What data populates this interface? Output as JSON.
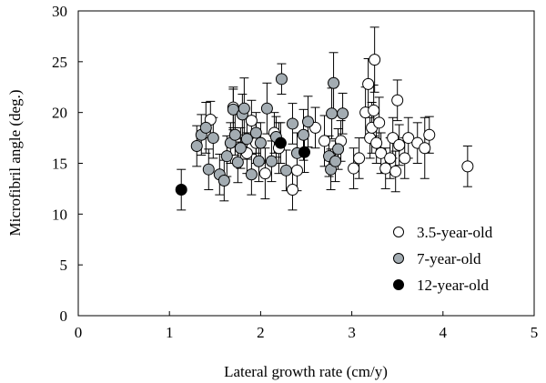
{
  "chart_data": {
    "type": "scatter",
    "title": "",
    "xlabel": "Lateral growth rate (cm/y)",
    "ylabel": "Microfibril angle (deg.)",
    "xlim": [
      0,
      5
    ],
    "ylim": [
      0,
      30
    ],
    "xticks": [
      "0",
      "1",
      "2",
      "3",
      "4",
      "5"
    ],
    "yticks": [
      "0",
      "5",
      "10",
      "15",
      "20",
      "25",
      "30"
    ],
    "grid": false,
    "error_bars": true,
    "legend_position": "bottom-right",
    "series": [
      {
        "name": "3.5-year-old",
        "marker_fill": "#ffffff",
        "points": [
          {
            "x": 1.45,
            "y": 19.3,
            "err": 1.8
          },
          {
            "x": 1.7,
            "y": 20.5,
            "err": 2.0
          },
          {
            "x": 1.85,
            "y": 16.0,
            "err": 2.0
          },
          {
            "x": 1.9,
            "y": 19.2,
            "err": 2.0
          },
          {
            "x": 1.95,
            "y": 17.0,
            "err": 2.0
          },
          {
            "x": 2.05,
            "y": 14.0,
            "err": 2.5
          },
          {
            "x": 2.15,
            "y": 18.0,
            "err": 2.0
          },
          {
            "x": 2.2,
            "y": 16.5,
            "err": 2.5
          },
          {
            "x": 2.35,
            "y": 12.4,
            "err": 2.0
          },
          {
            "x": 2.4,
            "y": 14.3,
            "err": 2.0
          },
          {
            "x": 2.6,
            "y": 18.5,
            "err": 2.0
          },
          {
            "x": 2.7,
            "y": 17.2,
            "err": 2.5
          },
          {
            "x": 2.88,
            "y": 17.2,
            "err": 2.0
          },
          {
            "x": 3.02,
            "y": 14.5,
            "err": 2.0
          },
          {
            "x": 3.08,
            "y": 15.5,
            "err": 2.0
          },
          {
            "x": 3.15,
            "y": 20.0,
            "err": 2.5
          },
          {
            "x": 3.18,
            "y": 22.8,
            "err": 2.5
          },
          {
            "x": 3.2,
            "y": 17.5,
            "err": 2.0
          },
          {
            "x": 3.22,
            "y": 18.5,
            "err": 2.5
          },
          {
            "x": 3.24,
            "y": 20.2,
            "err": 2.5
          },
          {
            "x": 3.25,
            "y": 25.2,
            "err": 3.2
          },
          {
            "x": 3.27,
            "y": 17.0,
            "err": 2.0
          },
          {
            "x": 3.3,
            "y": 19.0,
            "err": 2.5
          },
          {
            "x": 3.32,
            "y": 16.0,
            "err": 2.0
          },
          {
            "x": 3.37,
            "y": 14.5,
            "err": 2.0
          },
          {
            "x": 3.42,
            "y": 15.5,
            "err": 2.0
          },
          {
            "x": 3.45,
            "y": 17.5,
            "err": 2.0
          },
          {
            "x": 3.48,
            "y": 14.2,
            "err": 2.0
          },
          {
            "x": 3.5,
            "y": 21.2,
            "err": 2.0
          },
          {
            "x": 3.52,
            "y": 16.8,
            "err": 2.0
          },
          {
            "x": 3.58,
            "y": 15.5,
            "err": 2.0
          },
          {
            "x": 3.62,
            "y": 17.5,
            "err": 2.0
          },
          {
            "x": 3.72,
            "y": 17.0,
            "err": 2.0
          },
          {
            "x": 3.8,
            "y": 16.5,
            "err": 3.0
          },
          {
            "x": 3.85,
            "y": 17.8,
            "err": 1.8
          },
          {
            "x": 4.27,
            "y": 14.7,
            "err": 2.0
          }
        ]
      },
      {
        "name": "7-year-old",
        "marker_fill": "#a3acb2",
        "points": [
          {
            "x": 1.3,
            "y": 16.7,
            "err": 2.0
          },
          {
            "x": 1.35,
            "y": 17.8,
            "err": 2.0
          },
          {
            "x": 1.4,
            "y": 18.5,
            "err": 2.5
          },
          {
            "x": 1.43,
            "y": 14.4,
            "err": 2.0
          },
          {
            "x": 1.48,
            "y": 17.5,
            "err": 2.0
          },
          {
            "x": 1.55,
            "y": 13.9,
            "err": 2.0
          },
          {
            "x": 1.6,
            "y": 13.3,
            "err": 2.0
          },
          {
            "x": 1.63,
            "y": 15.7,
            "err": 2.0
          },
          {
            "x": 1.67,
            "y": 17.0,
            "err": 2.0
          },
          {
            "x": 1.7,
            "y": 20.3,
            "err": 2.0
          },
          {
            "x": 1.72,
            "y": 17.8,
            "err": 2.0
          },
          {
            "x": 1.75,
            "y": 15.1,
            "err": 2.0
          },
          {
            "x": 1.78,
            "y": 16.5,
            "err": 2.0
          },
          {
            "x": 1.8,
            "y": 19.8,
            "err": 2.0
          },
          {
            "x": 1.82,
            "y": 20.4,
            "err": 3.0
          },
          {
            "x": 1.85,
            "y": 17.4,
            "err": 2.0
          },
          {
            "x": 1.9,
            "y": 13.9,
            "err": 2.0
          },
          {
            "x": 1.95,
            "y": 18.0,
            "err": 2.0
          },
          {
            "x": 1.98,
            "y": 15.2,
            "err": 2.0
          },
          {
            "x": 2.0,
            "y": 17.0,
            "err": 2.0
          },
          {
            "x": 2.07,
            "y": 20.4,
            "err": 2.5
          },
          {
            "x": 2.12,
            "y": 15.2,
            "err": 2.0
          },
          {
            "x": 2.17,
            "y": 17.6,
            "err": 2.0
          },
          {
            "x": 2.23,
            "y": 23.3,
            "err": 1.5
          },
          {
            "x": 2.28,
            "y": 14.3,
            "err": 2.0
          },
          {
            "x": 2.35,
            "y": 18.9,
            "err": 2.0
          },
          {
            "x": 2.4,
            "y": 16.0,
            "err": 2.0
          },
          {
            "x": 2.47,
            "y": 17.8,
            "err": 2.5
          },
          {
            "x": 2.52,
            "y": 19.1,
            "err": 2.5
          },
          {
            "x": 2.75,
            "y": 15.7,
            "err": 2.0
          },
          {
            "x": 2.77,
            "y": 14.4,
            "err": 2.0
          },
          {
            "x": 2.78,
            "y": 19.9,
            "err": 2.5
          },
          {
            "x": 2.8,
            "y": 22.9,
            "err": 3.0
          },
          {
            "x": 2.82,
            "y": 15.2,
            "err": 2.0
          },
          {
            "x": 2.85,
            "y": 16.4,
            "err": 2.0
          },
          {
            "x": 2.9,
            "y": 19.9,
            "err": 2.0
          }
        ]
      },
      {
        "name": "12-year-old",
        "marker_fill": "#000000",
        "points": [
          {
            "x": 1.13,
            "y": 12.4,
            "err": 2.0
          },
          {
            "x": 2.22,
            "y": 17.0,
            "err": 2.0
          },
          {
            "x": 2.48,
            "y": 16.1,
            "err": 2.0
          }
        ]
      }
    ]
  }
}
